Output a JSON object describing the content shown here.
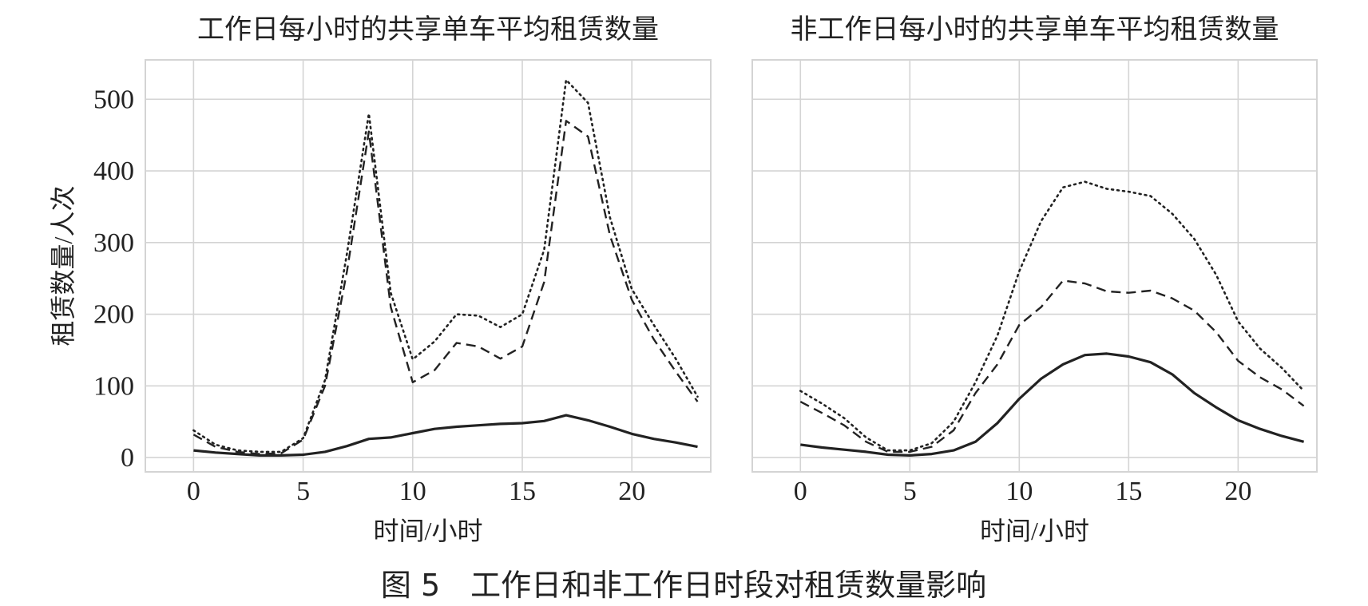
{
  "figure_caption": "图 5　工作日和非工作日时段对租赁数量影响",
  "colors": {
    "grid": "#d4d4d4",
    "line": "#222222",
    "background": "#ffffff"
  },
  "chart_data": [
    {
      "type": "line",
      "title": "工作日每小时的共享单车平均租赁数量",
      "xlabel": "时间/小时",
      "ylabel": "租赁数量/人次",
      "xlim": [
        -2.2,
        23.6
      ],
      "ylim": [
        -20,
        555
      ],
      "xticks": [
        0,
        5,
        10,
        15,
        20
      ],
      "yticks": [
        0,
        100,
        200,
        300,
        400,
        500
      ],
      "grid": true,
      "x": [
        0,
        1,
        2,
        3,
        4,
        5,
        6,
        7,
        8,
        9,
        10,
        11,
        12,
        13,
        14,
        15,
        16,
        17,
        18,
        19,
        20,
        21,
        22,
        23
      ],
      "series": [
        {
          "style": "solid",
          "values": [
            10,
            7,
            5,
            3,
            3,
            4,
            8,
            16,
            26,
            28,
            34,
            40,
            43,
            45,
            47,
            48,
            51,
            59,
            52,
            43,
            33,
            26,
            21,
            15
          ]
        },
        {
          "style": "dashed",
          "values": [
            32,
            15,
            8,
            5,
            6,
            25,
            100,
            260,
            455,
            210,
            105,
            122,
            160,
            155,
            138,
            155,
            245,
            470,
            448,
            310,
            220,
            165,
            120,
            78
          ]
        },
        {
          "style": "dotted",
          "values": [
            38,
            18,
            10,
            8,
            8,
            27,
            108,
            285,
            480,
            230,
            137,
            162,
            200,
            198,
            182,
            200,
            290,
            527,
            495,
            335,
            235,
            185,
            138,
            85
          ]
        }
      ]
    },
    {
      "type": "line",
      "title": "非工作日每小时的共享单车平均租赁数量",
      "xlabel": "时间/小时",
      "ylabel": "",
      "xlim": [
        -2.2,
        23.6
      ],
      "ylim": [
        -20,
        555
      ],
      "xticks": [
        0,
        5,
        10,
        15,
        20
      ],
      "yticks": [
        0,
        100,
        200,
        300,
        400,
        500
      ],
      "grid": true,
      "x": [
        0,
        1,
        2,
        3,
        4,
        5,
        6,
        7,
        8,
        9,
        10,
        11,
        12,
        13,
        14,
        15,
        16,
        17,
        18,
        19,
        20,
        21,
        22,
        23
      ],
      "series": [
        {
          "style": "solid",
          "values": [
            18,
            14,
            11,
            8,
            4,
            3,
            5,
            10,
            22,
            48,
            82,
            110,
            130,
            143,
            145,
            141,
            133,
            116,
            90,
            70,
            52,
            40,
            30,
            22
          ]
        },
        {
          "style": "dashed",
          "values": [
            78,
            62,
            45,
            22,
            8,
            8,
            15,
            38,
            90,
            130,
            185,
            210,
            247,
            243,
            232,
            230,
            233,
            222,
            205,
            175,
            135,
            112,
            95,
            72
          ]
        },
        {
          "style": "dotted",
          "values": [
            93,
            75,
            55,
            28,
            10,
            10,
            20,
            50,
            105,
            170,
            260,
            330,
            377,
            385,
            375,
            371,
            365,
            340,
            305,
            255,
            190,
            152,
            125,
            93
          ]
        }
      ]
    }
  ]
}
